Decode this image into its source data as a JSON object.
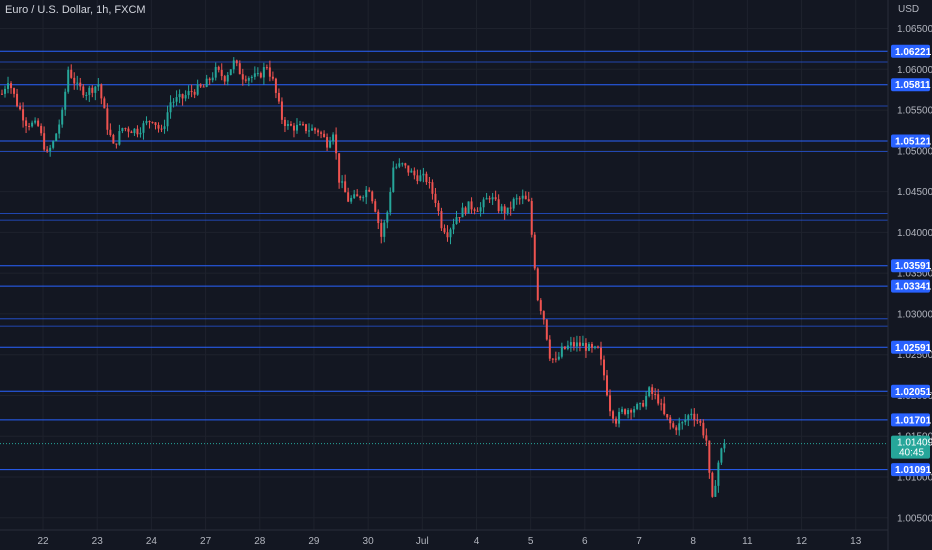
{
  "chart_data": {
    "type": "candlestick",
    "title": "Euro / U.S. Dollar, 1h, FXCM",
    "currency": "USD",
    "ylim": [
      1.0035,
      1.0685
    ],
    "y_ticks": [
      "1.06500",
      "1.06000",
      "1.05500",
      "1.05000",
      "1.04500",
      "1.04000",
      "1.03500",
      "1.03000",
      "1.02500",
      "1.02000",
      "1.01500",
      "1.01000",
      "1.00500"
    ],
    "x_ticks": [
      {
        "label": "22",
        "idx": 4
      },
      {
        "label": "23",
        "idx": 22
      },
      {
        "label": "24",
        "idx": 40
      },
      {
        "label": "27",
        "idx": 58
      },
      {
        "label": "28",
        "idx": 76
      },
      {
        "label": "29",
        "idx": 94
      },
      {
        "label": "30",
        "idx": 112
      },
      {
        "label": "Jul",
        "idx": 130
      },
      {
        "label": "4",
        "idx": 148
      },
      {
        "label": "5",
        "idx": 166
      },
      {
        "label": "6",
        "idx": 184
      },
      {
        "label": "7",
        "idx": 202
      },
      {
        "label": "8",
        "idx": 220
      },
      {
        "label": "11",
        "idx": 238
      },
      {
        "label": "12",
        "idx": 256
      },
      {
        "label": "13",
        "idx": 274
      }
    ],
    "price_levels": [
      {
        "value": 1.06221,
        "label": "1.06221"
      },
      {
        "value": 1.05811,
        "label": "1.05811"
      },
      {
        "value": 1.05121,
        "label": "1.05121"
      },
      {
        "value": 1.03591,
        "label": "1.03591"
      },
      {
        "value": 1.03341,
        "label": "1.03341"
      },
      {
        "value": 1.02591,
        "label": "1.02591"
      },
      {
        "value": 1.02051,
        "label": "1.02051"
      },
      {
        "value": 1.01701,
        "label": "1.01701"
      },
      {
        "value": 1.01091,
        "label": "1.01091"
      }
    ],
    "extra_levels": [
      1.0609,
      1.0555,
      1.0499,
      1.0423,
      1.0415,
      1.0294,
      1.0285
    ],
    "current_price": {
      "value": 1.01409,
      "label": "1.01409",
      "countdown": "40:45"
    },
    "colors": {
      "up": "#26a69a",
      "down": "#ef5350",
      "level": "#2962ff",
      "badge": "#2962ff",
      "current": "#26a69a",
      "background": "#131722"
    },
    "keypoints": [
      [
        0,
        1.057
      ],
      [
        2,
        1.0588
      ],
      [
        5,
        1.0558
      ],
      [
        8,
        1.0535
      ],
      [
        12,
        1.053
      ],
      [
        15,
        1.0495
      ],
      [
        17,
        1.051
      ],
      [
        20,
        1.0545
      ],
      [
        22,
        1.06
      ],
      [
        25,
        1.0578
      ],
      [
        28,
        1.0572
      ],
      [
        32,
        1.0582
      ],
      [
        35,
        1.053
      ],
      [
        37,
        1.0505
      ],
      [
        40,
        1.0528
      ],
      [
        45,
        1.0525
      ],
      [
        50,
        1.054
      ],
      [
        53,
        1.0522
      ],
      [
        56,
        1.056
      ],
      [
        60,
        1.0565
      ],
      [
        63,
        1.0573
      ],
      [
        67,
        1.0578
      ],
      [
        71,
        1.0598
      ],
      [
        74,
        1.059
      ],
      [
        77,
        1.0608
      ],
      [
        80,
        1.0592
      ],
      [
        85,
        1.059
      ],
      [
        88,
        1.0605
      ],
      [
        90,
        1.0585
      ],
      [
        93,
        1.054
      ],
      [
        95,
        1.053
      ],
      [
        100,
        1.0528
      ],
      [
        105,
        1.0525
      ],
      [
        108,
        1.051
      ],
      [
        110,
        1.0525
      ],
      [
        112,
        1.0465
      ],
      [
        115,
        1.044
      ],
      [
        118,
        1.0442
      ],
      [
        122,
        1.0455
      ],
      [
        124,
        1.043
      ],
      [
        126,
        1.0395
      ],
      [
        128,
        1.0425
      ],
      [
        130,
        1.048
      ],
      [
        133,
        1.0482
      ],
      [
        137,
        1.047
      ],
      [
        141,
        1.0465
      ],
      [
        144,
        1.044
      ],
      [
        146,
        1.041
      ],
      [
        148,
        1.04
      ],
      [
        151,
        1.042
      ],
      [
        155,
        1.0432
      ],
      [
        159,
        1.043
      ],
      [
        162,
        1.0445
      ],
      [
        165,
        1.043
      ],
      [
        168,
        1.0425
      ],
      [
        170,
        1.0438
      ],
      [
        173,
        1.0442
      ],
      [
        175,
        1.0435
      ],
      [
        177,
        1.036
      ],
      [
        178,
        1.032
      ],
      [
        180,
        1.0295
      ],
      [
        182,
        1.025
      ],
      [
        184,
        1.024
      ],
      [
        186,
        1.0255
      ],
      [
        189,
        1.0262
      ],
      [
        193,
        1.0262
      ],
      [
        196,
        1.0255
      ],
      [
        198,
        1.0255
      ],
      [
        200,
        1.0225
      ],
      [
        202,
        1.0185
      ],
      [
        204,
        1.017
      ],
      [
        206,
        1.018
      ],
      [
        209,
        1.0185
      ],
      [
        212,
        1.0185
      ],
      [
        215,
        1.0205
      ],
      [
        218,
        1.0195
      ],
      [
        220,
        1.0175
      ],
      [
        223,
        1.016
      ],
      [
        226,
        1.0165
      ],
      [
        229,
        1.018
      ],
      [
        232,
        1.0165
      ],
      [
        234,
        1.0145
      ],
      [
        235,
        1.01
      ],
      [
        236,
        1.007
      ],
      [
        237,
        1.0095
      ],
      [
        238,
        1.0118
      ],
      [
        239,
        1.0132
      ],
      [
        240,
        1.0141
      ]
    ]
  }
}
